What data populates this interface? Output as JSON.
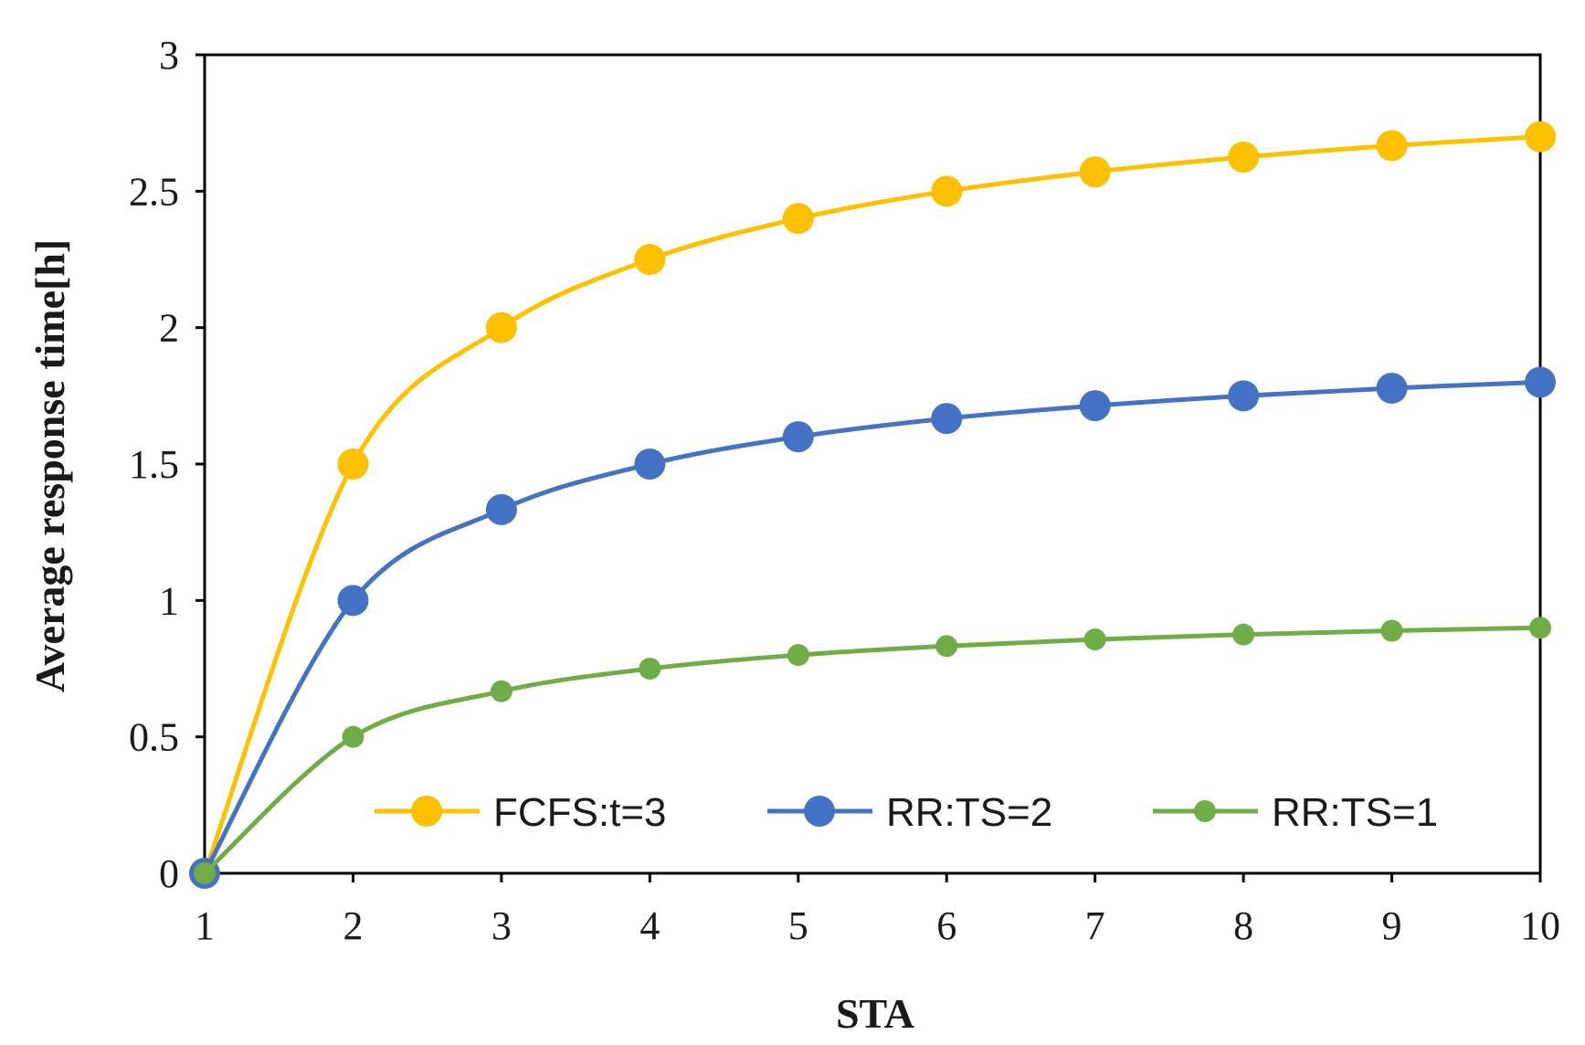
{
  "chart_data": {
    "type": "line",
    "title": "",
    "xlabel": "STA",
    "ylabel": "Average response time[h]",
    "x": [
      1,
      2,
      3,
      4,
      5,
      6,
      7,
      8,
      9,
      10
    ],
    "xticks": [
      "1",
      "2",
      "3",
      "4",
      "5",
      "6",
      "7",
      "8",
      "9",
      "10"
    ],
    "yticks": [
      "0",
      "0.5",
      "1",
      "1.5",
      "2",
      "2.5",
      "3"
    ],
    "ylim": [
      0,
      3
    ],
    "xlim": [
      1,
      10
    ],
    "grid": false,
    "legend_position": "bottom-inside",
    "series": [
      {
        "name": "FCFS:t=3",
        "color": "#FFC000",
        "marker": "large-circle",
        "values": [
          0,
          1.5,
          2.0,
          2.25,
          2.4,
          2.5,
          2.571,
          2.625,
          2.667,
          2.7
        ]
      },
      {
        "name": "RR:TS=2",
        "color": "#4472C4",
        "marker": "large-circle",
        "values": [
          0,
          1.0,
          1.333,
          1.5,
          1.6,
          1.667,
          1.714,
          1.75,
          1.778,
          1.8
        ]
      },
      {
        "name": "RR:TS=1",
        "color": "#70AD47",
        "marker": "small-circle",
        "values": [
          0,
          0.5,
          0.667,
          0.75,
          0.8,
          0.833,
          0.857,
          0.875,
          0.889,
          0.9
        ]
      }
    ]
  }
}
